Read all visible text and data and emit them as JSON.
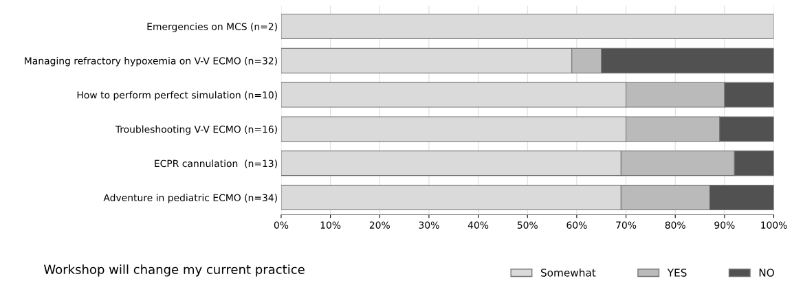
{
  "chart_data": {
    "type": "bar",
    "orientation": "horizontal",
    "stacked": true,
    "title": "Workshop will change my current practice",
    "categories": [
      "Emergencies on MCS (n=2)",
      "Managing refractory hypoxemia on V-V ECMO (n=32)",
      "How to perform perfect simulation (n=10)",
      "Troubleshooting V-V ECMO (n=16)",
      "ECPR cannulation  (n=13)",
      "Adventure in pediatric ECMO (n=34)"
    ],
    "series": [
      {
        "name": "Somewhat",
        "color": "#dadada",
        "values": [
          100,
          59,
          70,
          70,
          69,
          69
        ]
      },
      {
        "name": "YES",
        "color": "#bababa",
        "values": [
          null,
          6,
          20,
          19,
          23,
          18
        ]
      },
      {
        "name": "NO",
        "color": "#515151",
        "values": [
          null,
          35,
          10,
          11,
          8,
          13
        ]
      }
    ],
    "xlim": [
      0,
      100
    ],
    "xticks": [
      {
        "value": 0,
        "label": "0%"
      },
      {
        "value": 10,
        "label": "10%"
      },
      {
        "value": 20,
        "label": "20%"
      },
      {
        "value": 30,
        "label": "30%"
      },
      {
        "value": 40,
        "label": "40%"
      },
      {
        "value": 50,
        "label": "50%"
      },
      {
        "value": 60,
        "label": "60%"
      },
      {
        "value": 70,
        "label": "70%"
      },
      {
        "value": 80,
        "label": "80%"
      },
      {
        "value": 90,
        "label": "90%"
      },
      {
        "value": 100,
        "label": "100%"
      }
    ],
    "grid": "x",
    "legend": "bottom right"
  }
}
